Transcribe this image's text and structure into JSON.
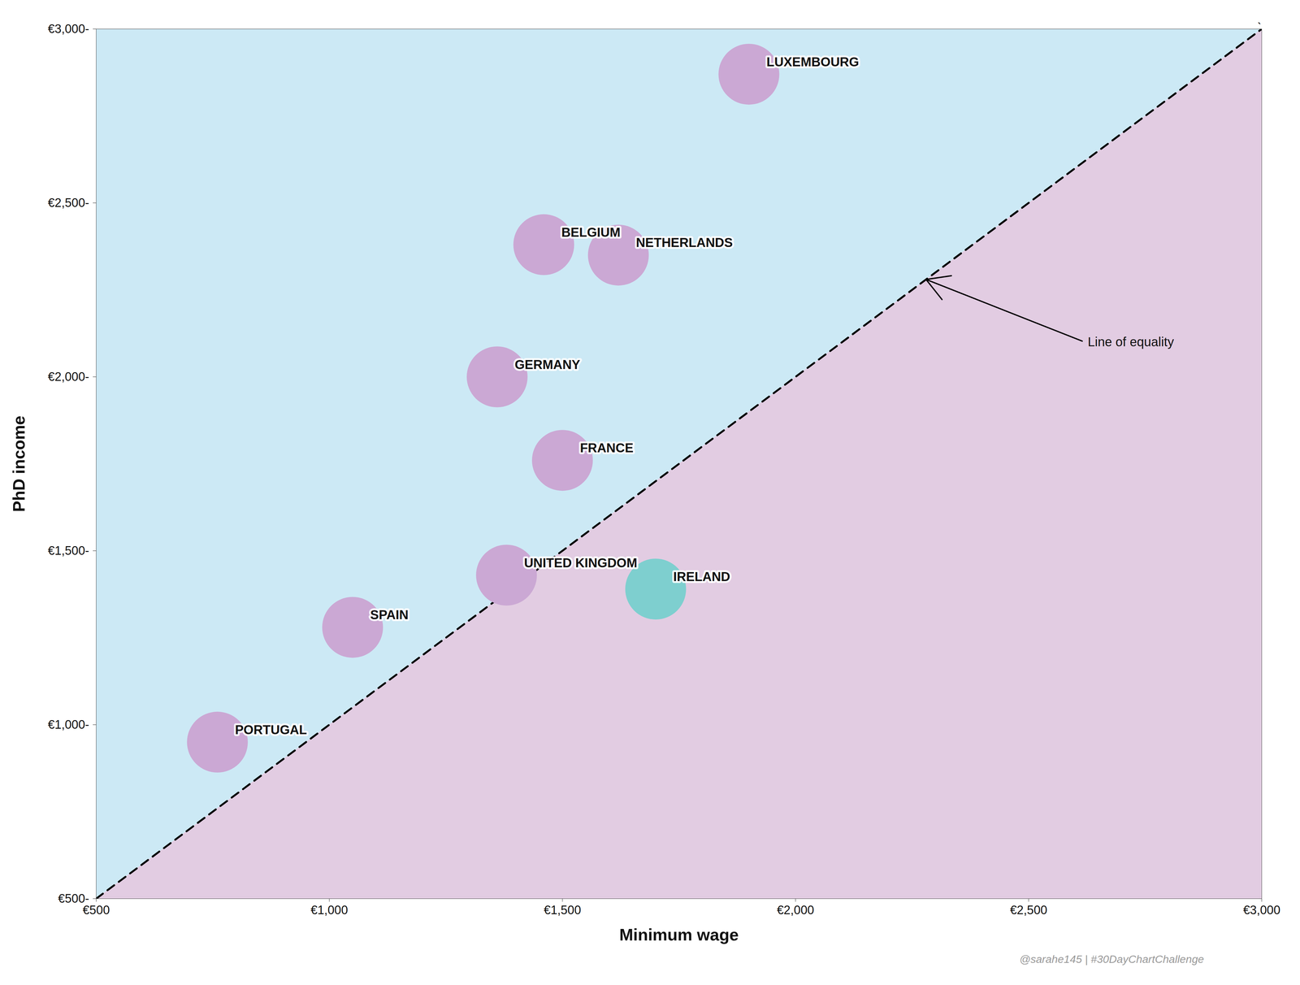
{
  "chart_data": {
    "type": "scatter",
    "x_label": "Minimum wage",
    "y_label": "PhD income",
    "categories": [
      "PORTUGAL",
      "SPAIN",
      "UNITED KINGDOM",
      "IRELAND",
      "FRANCE",
      "GERMANY",
      "BELGIUM",
      "NETHERLANDS",
      "LUXEMBOURG"
    ],
    "x": [
      760,
      1050,
      1380,
      1700,
      1500,
      1360,
      1460,
      1620,
      1900
    ],
    "values": [
      950,
      1280,
      1430,
      1390,
      1760,
      2000,
      2380,
      2350,
      2870
    ],
    "colors": [
      "#cba8d4",
      "#cba8d4",
      "#cba8d4",
      "#7ecfcf",
      "#cba8d4",
      "#cba8d4",
      "#cba8d4",
      "#cba8d4",
      "#cba8d4"
    ],
    "xlim": [
      500,
      3000
    ],
    "ylim": [
      500,
      3000
    ],
    "xticks": [
      {
        "value": 500,
        "label": "€500"
      },
      {
        "value": 1000,
        "label": "€1,000"
      },
      {
        "value": 1500,
        "label": "€1,500"
      },
      {
        "value": 2000,
        "label": "€2,000"
      },
      {
        "value": 2500,
        "label": "€2,500"
      },
      {
        "value": 3000,
        "label": "€3,000"
      }
    ],
    "yticks": [
      {
        "value": 500,
        "label": "€500-"
      },
      {
        "value": 1000,
        "label": "€1,000-"
      },
      {
        "value": 1500,
        "label": "€1,500-"
      },
      {
        "value": 2000,
        "label": "€2,000-"
      },
      {
        "value": 2500,
        "label": "€2,500-"
      },
      {
        "value": 3000,
        "label": "€3,000-"
      }
    ],
    "region_colors": {
      "below": "#e2cce2",
      "above": "#cce9f5"
    },
    "annotations": [
      {
        "text": "Line of equality",
        "x": 2620,
        "y": 2100,
        "arrow_x": 2280,
        "arrow_y": 2280
      },
      {
        "text": "ˋ"
      }
    ],
    "caption": "@sarahe145 | #30DayChartChallenge",
    "grid": false
  }
}
